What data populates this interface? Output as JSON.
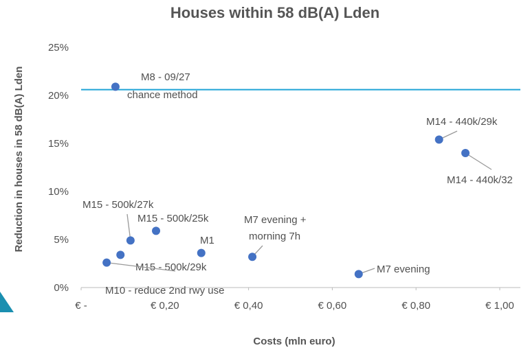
{
  "chart_data": {
    "type": "scatter",
    "title": "Houses within 58 dB(A) Lden",
    "x_label": "Costs (mln euro)",
    "y_label": "Reduction in houses in 58 dB(A) Lden",
    "x": [
      0.082,
      0.855,
      0.918,
      0.118,
      0.179,
      0.287,
      0.409,
      0.663,
      0.094,
      0.061
    ],
    "y": [
      20.9,
      15.4,
      14.0,
      4.9,
      5.9,
      3.6,
      3.2,
      1.4,
      3.4,
      2.6
    ],
    "labels": [
      [
        "M8 - 09/27",
        "chance method"
      ],
      [
        "M14 - 440k/29k"
      ],
      [
        "M14 - 440k/32"
      ],
      [
        "M15 - 500k/27k"
      ],
      [
        "M15 - 500k/25k"
      ],
      [
        "M1"
      ],
      [
        "M7 evening +",
        "morning 7h"
      ],
      [
        "M7 evening"
      ],
      [
        "M15 - 500k/29k"
      ],
      [
        "M10 - reduce 2nd rwy use"
      ]
    ],
    "color": "#4472c4",
    "reference_line": {
      "value": 20.6,
      "color": "#1fa3d6"
    },
    "xlim": [
      0,
      1.0
    ],
    "xticks": [
      {
        "value": 0,
        "label": "€ -"
      },
      {
        "value": 0.2,
        "label": "€ 0,20"
      },
      {
        "value": 0.4,
        "label": "€ 0,40"
      },
      {
        "value": 0.6,
        "label": "€ 0,60"
      },
      {
        "value": 0.8,
        "label": "€ 0,80"
      },
      {
        "value": 1.0,
        "label": "€ 1,00"
      }
    ],
    "ylim": [
      0,
      25
    ],
    "yticks": [
      {
        "value": 0,
        "label": "0%"
      },
      {
        "value": 5,
        "label": "5%"
      },
      {
        "value": 10,
        "label": "10%"
      },
      {
        "value": 15,
        "label": "15%"
      },
      {
        "value": 20,
        "label": "20%"
      },
      {
        "value": 25,
        "label": "25%"
      }
    ],
    "grid": false
  }
}
